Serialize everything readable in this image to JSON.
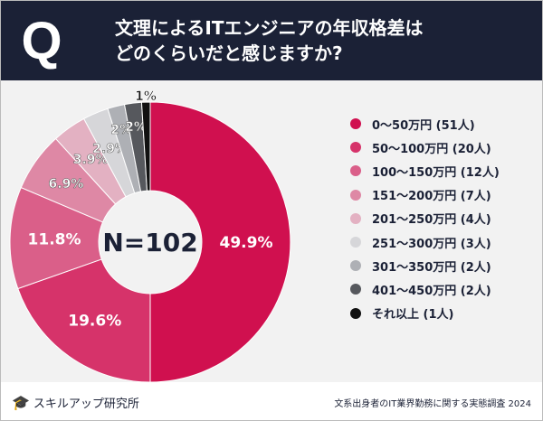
{
  "header": {
    "icon": "Q",
    "title_line1": "文理によるITエンジニアの年収格差は",
    "title_line2": "どのくらいだと感じますか?"
  },
  "chart_data": {
    "type": "pie",
    "donut": true,
    "center_label": "N=102",
    "categories": [
      "0〜50万円",
      "50〜100万円",
      "100〜150万円",
      "151〜200万円",
      "201〜250万円",
      "251〜300万円",
      "301〜350万円",
      "401〜450万円",
      "それ以上"
    ],
    "counts": [
      51,
      20,
      12,
      7,
      4,
      3,
      2,
      2,
      1
    ],
    "values": [
      49.9,
      19.6,
      11.8,
      6.9,
      3.9,
      2.9,
      2,
      2,
      1
    ],
    "data_labels": [
      "49.9%",
      "19.6%",
      "11.8%",
      "6.9%",
      "3.9%",
      "2.9%",
      "2%",
      "2%",
      "1%"
    ],
    "legend_labels": [
      "0〜50万円 (51人)",
      "50〜100万円 (20人)",
      "100〜150万円 (12人)",
      "151〜200万円 (7人)",
      "201〜250万円 (4人)",
      "251〜300万円 (3人)",
      "301〜350万円 (2人)",
      "401〜450万円 (2人)",
      "それ以上 (1人)"
    ],
    "colors": [
      "#d0104f",
      "#d6336a",
      "#da5f89",
      "#de88a5",
      "#e3b1c2",
      "#d6d6d9",
      "#aeb0b5",
      "#56585d",
      "#111111"
    ],
    "legend_position": "right"
  },
  "footer": {
    "brand": "スキルアップ研究所",
    "source": "文系出身者のIT業界勤務に関する実態調査 2024"
  }
}
